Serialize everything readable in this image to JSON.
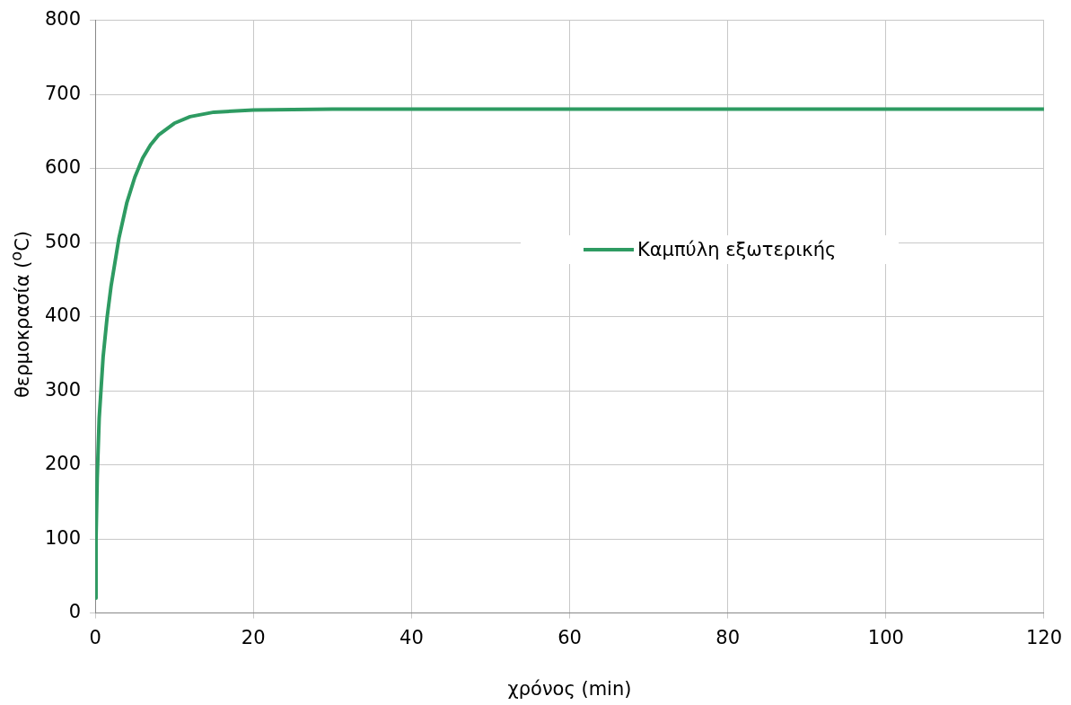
{
  "chart_data": {
    "type": "line",
    "xlabel": "χρόνος (min)",
    "ylabel": "θερμοκρασία ($^{o}$C)",
    "x": [
      0,
      0.1,
      0.25,
      0.5,
      1,
      1.5,
      2,
      3,
      4,
      5,
      6,
      7,
      8,
      10,
      12,
      15,
      20,
      30,
      60,
      90,
      120
    ],
    "series": [
      {
        "name": "Καμπύλη εξωτερικής",
        "color": "#2e9b62",
        "values": [
          20,
          100,
          182,
          263,
          346,
          399,
          441,
          506,
          554,
          588,
          614,
          632,
          645,
          661,
          670,
          676,
          679,
          680,
          680,
          680,
          680
        ]
      }
    ],
    "xlim": [
      0,
      120
    ],
    "xticks": [
      0,
      20,
      40,
      60,
      80,
      100,
      120
    ],
    "ylim": [
      0,
      800
    ],
    "yticks": [
      0,
      100,
      200,
      300,
      400,
      500,
      600,
      700,
      800
    ],
    "grid": true,
    "legend": "right",
    "marker": "none",
    "line_style": "solid"
  }
}
